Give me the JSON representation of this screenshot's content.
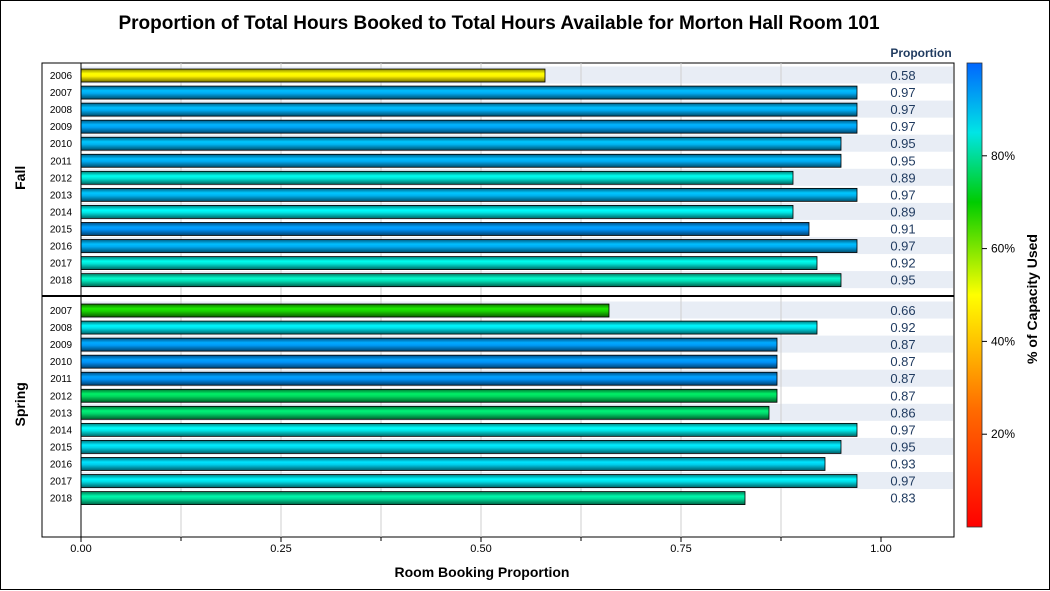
{
  "chart_data": {
    "type": "bar",
    "orientation": "horizontal",
    "title": "Proportion of Total Hours Booked to Total Hours Available for Morton Hall Room 101",
    "xlabel": "Room Booking Proportion",
    "xlim": [
      0,
      1.0
    ],
    "xticks": [
      "0.00",
      "0.25",
      "0.50",
      "0.75",
      "1.00"
    ],
    "value_column_header": "Proportion",
    "colorbar": {
      "label": "% of Capacity Used",
      "ticks": [
        "20%",
        "40%",
        "60%",
        "80%"
      ],
      "tick_values": [
        0.2,
        0.4,
        0.6,
        0.8
      ],
      "range": [
        0.0,
        1.0
      ]
    },
    "panels": [
      {
        "name": "Fall",
        "categories": [
          "2006",
          "2007",
          "2008",
          "2009",
          "2010",
          "2011",
          "2012",
          "2013",
          "2014",
          "2015",
          "2016",
          "2017",
          "2018"
        ],
        "values": [
          0.58,
          0.97,
          0.97,
          0.97,
          0.95,
          0.95,
          0.89,
          0.97,
          0.89,
          0.91,
          0.97,
          0.92,
          0.95
        ],
        "labels": [
          "0.58",
          "0.97",
          "0.97",
          "0.97",
          "0.95",
          "0.95",
          "0.89",
          "0.97",
          "0.89",
          "0.91",
          "0.97",
          "0.92",
          "0.95"
        ],
        "capacity_used": [
          0.48,
          0.92,
          0.92,
          0.93,
          0.91,
          0.92,
          0.84,
          0.91,
          0.85,
          0.95,
          0.92,
          0.84,
          0.82
        ]
      },
      {
        "name": "Spring",
        "categories": [
          "2007",
          "2008",
          "2009",
          "2010",
          "2011",
          "2012",
          "2013",
          "2014",
          "2015",
          "2016",
          "2017",
          "2018"
        ],
        "values": [
          0.66,
          0.92,
          0.87,
          0.87,
          0.87,
          0.87,
          0.86,
          0.97,
          0.95,
          0.93,
          0.97,
          0.83
        ],
        "labels": [
          "0.66",
          "0.92",
          "0.87",
          "0.87",
          "0.87",
          "0.87",
          "0.86",
          "0.97",
          "0.95",
          "0.93",
          "0.97",
          "0.83"
        ],
        "capacity_used": [
          0.68,
          0.86,
          0.94,
          0.95,
          0.95,
          0.76,
          0.77,
          0.85,
          0.87,
          0.88,
          0.86,
          0.8
        ]
      }
    ]
  }
}
